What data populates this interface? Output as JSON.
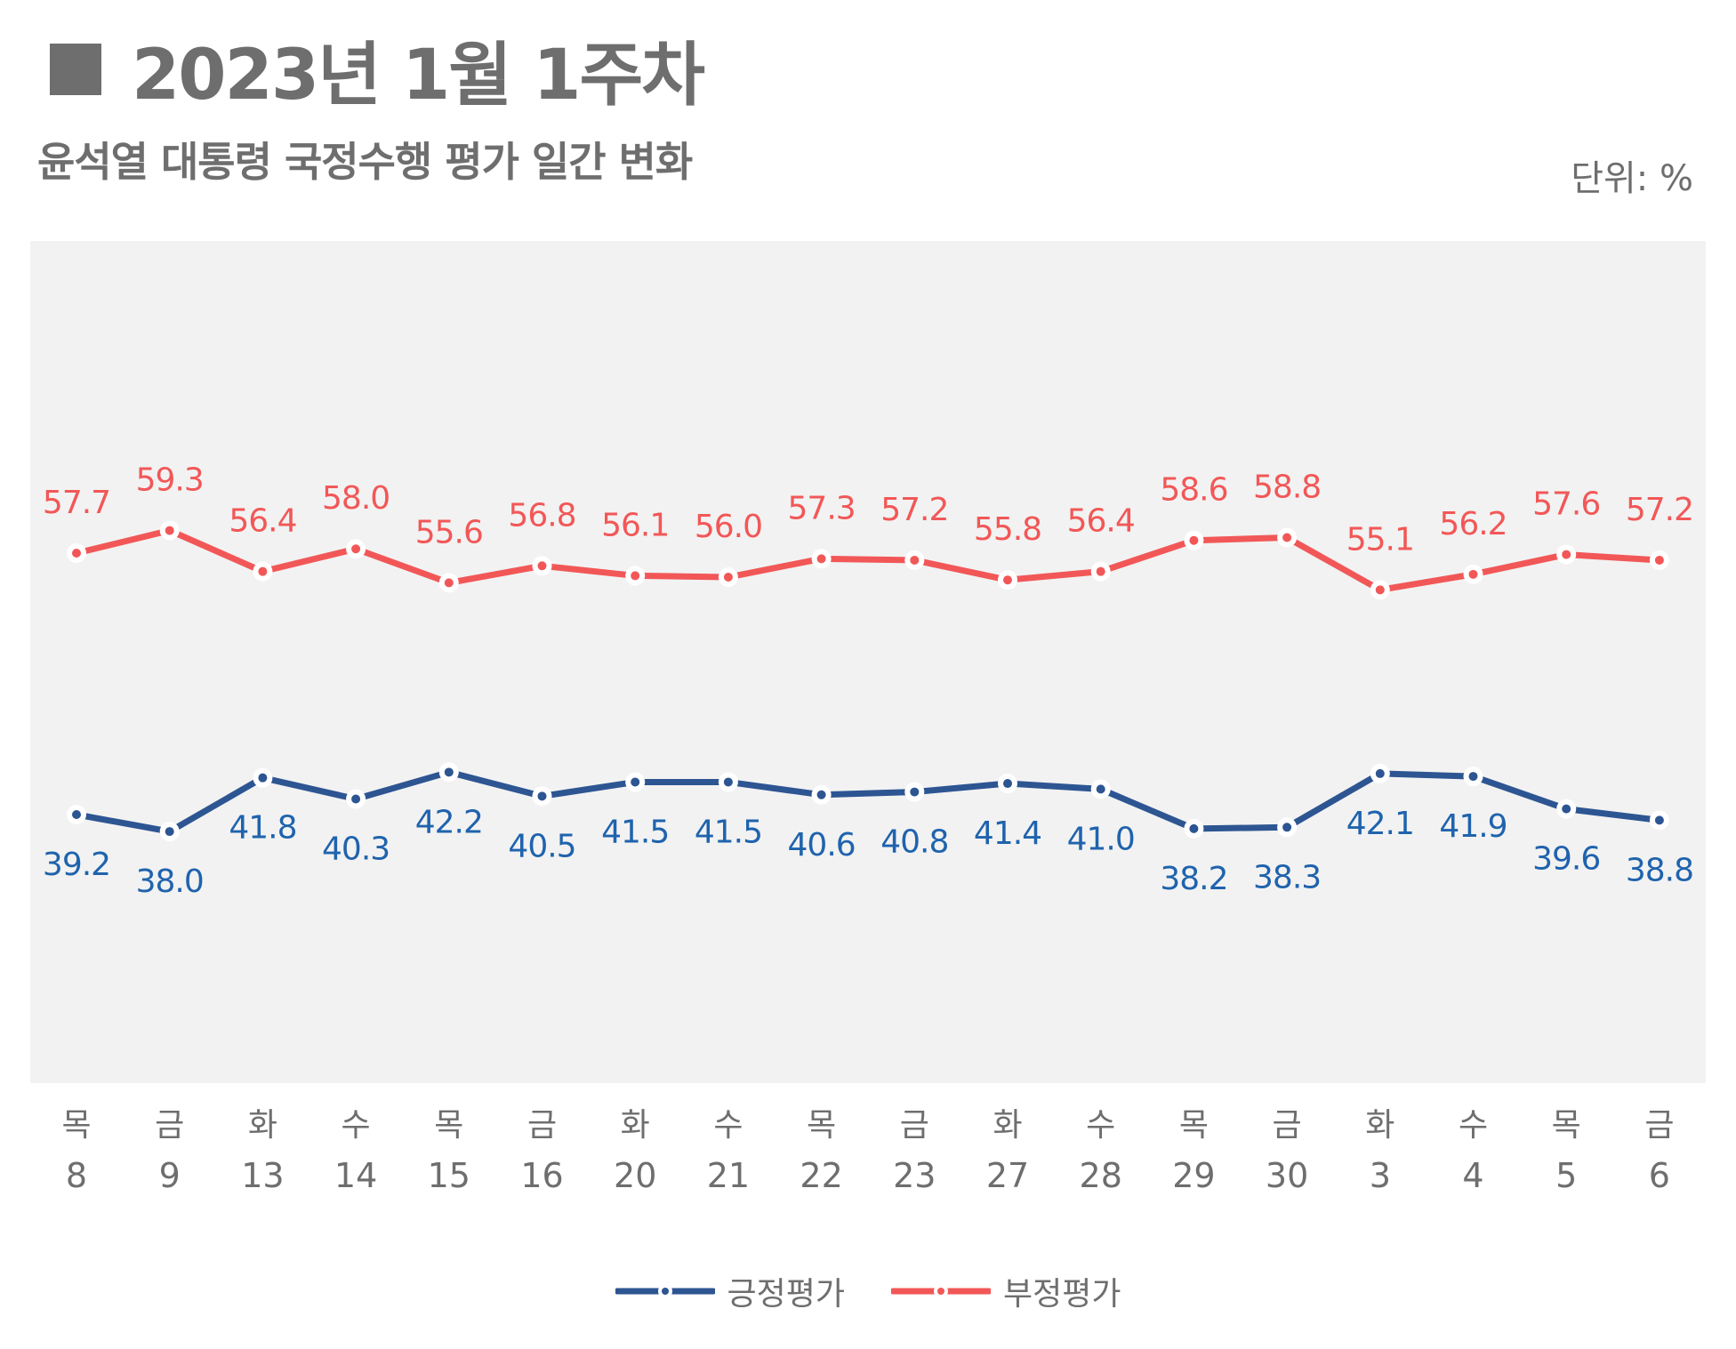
{
  "header": {
    "title": "2023년 1월 1주차",
    "subtitle": "윤석열 대통령 국정수행 평가 일간 변화",
    "unit": "단위: %"
  },
  "colors": {
    "positive": "#2d5592",
    "negative": "#f25757",
    "positive_label": "#1f63ad",
    "negative_label": "#f25757",
    "plot_bg": "#f2f2f2",
    "text": "#6e6e6e"
  },
  "chart_data": {
    "type": "line",
    "title": "윤석열 대통령 국정수행 평가 일간 변화",
    "ylabel": "단위: %",
    "ylim": [
      30,
      65
    ],
    "grid": false,
    "legend_position": "bottom-center",
    "categories_day": [
      "목",
      "금",
      "화",
      "수",
      "목",
      "금",
      "화",
      "수",
      "목",
      "금",
      "화",
      "수",
      "목",
      "금",
      "화",
      "수",
      "목",
      "금"
    ],
    "categories_date": [
      "8",
      "9",
      "13",
      "14",
      "15",
      "16",
      "20",
      "21",
      "22",
      "23",
      "27",
      "28",
      "29",
      "30",
      "3",
      "4",
      "5",
      "6"
    ],
    "series": [
      {
        "name": "긍정평가",
        "color": "#2d5592",
        "values": [
          39.2,
          38.0,
          41.8,
          40.3,
          42.2,
          40.5,
          41.5,
          41.5,
          40.6,
          40.8,
          41.4,
          41.0,
          38.2,
          38.3,
          42.1,
          41.9,
          39.6,
          38.8
        ],
        "labels": [
          "39.2",
          "38.0",
          "41.8",
          "40.3",
          "42.2",
          "40.5",
          "41.5",
          "41.5",
          "40.6",
          "40.8",
          "41.4",
          "41.0",
          "38.2",
          "38.3",
          "42.1",
          "41.9",
          "39.6",
          "38.8"
        ]
      },
      {
        "name": "부정평가",
        "color": "#f25757",
        "values": [
          57.7,
          59.3,
          56.4,
          58.0,
          55.6,
          56.8,
          56.1,
          56.0,
          57.3,
          57.2,
          55.8,
          56.4,
          58.6,
          58.8,
          55.1,
          56.2,
          57.6,
          57.2
        ],
        "labels": [
          "57.7",
          "59.3",
          "56.4",
          "58.0",
          "55.6",
          "56.8",
          "56.1",
          "56.0",
          "57.3",
          "57.2",
          "55.8",
          "56.4",
          "58.6",
          "58.8",
          "55.1",
          "56.2",
          "57.6",
          "57.2"
        ]
      }
    ]
  }
}
